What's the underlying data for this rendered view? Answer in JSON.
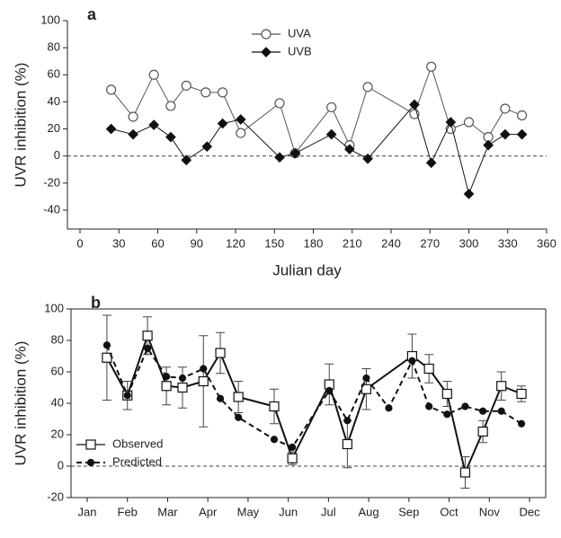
{
  "chart_data": [
    {
      "type": "line",
      "panel_label": "a",
      "y_label": "UVR inhibition (%)",
      "x_label": "Julian day",
      "xlim": [
        0,
        360
      ],
      "xticks": [
        0,
        30,
        60,
        90,
        120,
        150,
        180,
        210,
        240,
        270,
        300,
        330,
        360
      ],
      "ylim": [
        -40,
        100
      ],
      "yticks": [
        -40,
        -20,
        0,
        20,
        40,
        60,
        80,
        100
      ],
      "zero_line": true,
      "legend": "top",
      "series": [
        {
          "name": "UVA",
          "color": "#555555",
          "marker": "circle",
          "filled": false,
          "dashed": false,
          "x": [
            24,
            41,
            57,
            70,
            82,
            97,
            110,
            124,
            154,
            166,
            194,
            208,
            222,
            258,
            271,
            286,
            300,
            315,
            328,
            341
          ],
          "values": [
            49,
            29,
            60,
            37,
            52,
            47,
            47,
            17,
            39,
            2,
            36,
            8,
            51,
            31,
            66,
            20,
            25,
            14,
            35,
            30
          ]
        },
        {
          "name": "UVB",
          "color": "#111111",
          "marker": "diamond",
          "filled": true,
          "dashed": false,
          "x": [
            24,
            41,
            57,
            70,
            82,
            98,
            110,
            124,
            154,
            166,
            194,
            208,
            222,
            258,
            271,
            286,
            300,
            315,
            328,
            341
          ],
          "values": [
            20,
            16,
            23,
            14,
            -3,
            7,
            24,
            27,
            -1,
            2,
            16,
            5,
            -2,
            38,
            -5,
            25,
            -28,
            8,
            16,
            16
          ]
        }
      ]
    },
    {
      "type": "line",
      "panel_label": "b",
      "y_label": "UVR inhibition (%)",
      "xlim": [
        0,
        11
      ],
      "xticks": [
        {
          "value": 0,
          "label": "Jan"
        },
        {
          "value": 1,
          "label": "Feb"
        },
        {
          "value": 2,
          "label": "Mar"
        },
        {
          "value": 3,
          "label": "Apr"
        },
        {
          "value": 4,
          "label": "May"
        },
        {
          "value": 5,
          "label": "Jun"
        },
        {
          "value": 6,
          "label": "Jul"
        },
        {
          "value": 7,
          "label": "Aug"
        },
        {
          "value": 8,
          "label": "Sep"
        },
        {
          "value": 9,
          "label": "Oct"
        },
        {
          "value": 10,
          "label": "Nov"
        },
        {
          "value": 11,
          "label": "Dec"
        }
      ],
      "ylim": [
        -20,
        100
      ],
      "yticks": [
        -20,
        0,
        20,
        40,
        60,
        80,
        100
      ],
      "zero_line": true,
      "legend": "lower left",
      "series": [
        {
          "name": "Observed",
          "color": "#111111",
          "marker": "square",
          "filled": false,
          "dashed": false,
          "x": [
            0.49,
            1.0,
            1.5,
            1.97,
            2.37,
            2.89,
            3.31,
            3.76,
            4.65,
            5.1,
            6.02,
            6.47,
            6.94,
            8.08,
            8.5,
            8.95,
            9.4,
            9.84,
            10.3,
            10.8
          ],
          "values": [
            69,
            45,
            83,
            51,
            50,
            54,
            72,
            44,
            38,
            5,
            52,
            14,
            49,
            70,
            62,
            46,
            -4,
            22,
            51,
            46
          ],
          "errors": [
            27,
            9,
            12,
            12,
            13,
            29,
            13,
            10,
            11,
            4,
            13,
            15,
            13,
            14,
            9,
            8,
            10,
            7,
            9,
            5
          ]
        },
        {
          "name": "Predicted",
          "color": "#111111",
          "marker": "dot",
          "filled": true,
          "dashed": true,
          "x": [
            0.49,
            1.0,
            1.5,
            1.97,
            2.37,
            2.89,
            3.31,
            3.76,
            4.65,
            5.1,
            6.02,
            6.47,
            6.94,
            7.5,
            8.08,
            8.5,
            8.95,
            9.4,
            9.84,
            10.3,
            10.8
          ],
          "values": [
            77,
            45,
            75,
            57,
            56,
            62,
            43,
            31,
            17,
            12,
            48,
            29,
            56,
            37,
            67,
            38,
            33,
            38,
            35,
            35,
            27
          ]
        }
      ]
    }
  ]
}
